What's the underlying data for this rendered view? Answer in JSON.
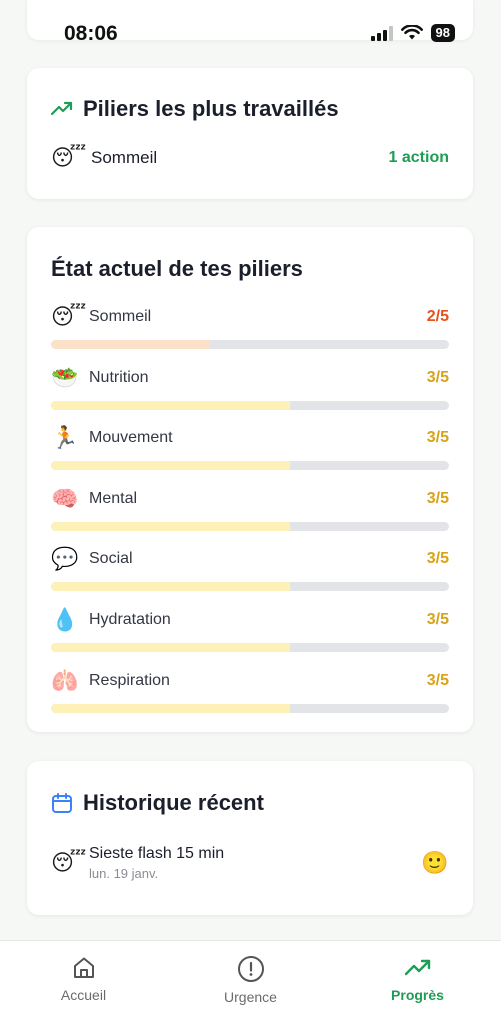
{
  "status_bar": {
    "time": "08:06",
    "battery": "98"
  },
  "colors": {
    "accent_green": "#1f9d55",
    "score_red": "#e5521e",
    "score_amber": "#d9a21b",
    "bar_peach": "#fce1c9",
    "bar_yellow": "#fdf1b8",
    "track": "#e3e4e8",
    "calendar_blue": "#3b82f6"
  },
  "most_worked": {
    "title": "Piliers les plus travaillés",
    "icon": "trending-up-icon",
    "items": [
      {
        "emoji": "😴",
        "name": "Sommeil",
        "count": "1 action"
      }
    ]
  },
  "current_state": {
    "title": "État actuel de tes piliers",
    "pillars": [
      {
        "emoji": "😴",
        "name": "Sommeil",
        "score": "2/5",
        "level": 0.4
      },
      {
        "emoji": "🥗",
        "name": "Nutrition",
        "score": "3/5",
        "level": 0.6
      },
      {
        "emoji": "🏃",
        "name": "Mouvement",
        "score": "3/5",
        "level": 0.6
      },
      {
        "emoji": "🧠",
        "name": "Mental",
        "score": "3/5",
        "level": 0.6
      },
      {
        "emoji": "💬",
        "name": "Social",
        "score": "3/5",
        "level": 0.6
      },
      {
        "emoji": "💧",
        "name": "Hydratation",
        "score": "3/5",
        "level": 0.6
      },
      {
        "emoji": "🫁",
        "name": "Respiration",
        "score": "3/5",
        "level": 0.6
      }
    ]
  },
  "history": {
    "title": "Historique récent",
    "icon": "calendar-icon",
    "items": [
      {
        "emoji": "😴",
        "title": "Sieste flash 15 min",
        "date": "lun. 19 janv.",
        "mood": "🙂"
      }
    ]
  },
  "nav": {
    "items": [
      {
        "label": "Accueil",
        "icon": "home-icon",
        "active": false
      },
      {
        "label": "Urgence",
        "icon": "alert-circle-icon",
        "active": false
      },
      {
        "label": "Progrès",
        "icon": "trending-up-icon",
        "active": true
      }
    ]
  }
}
